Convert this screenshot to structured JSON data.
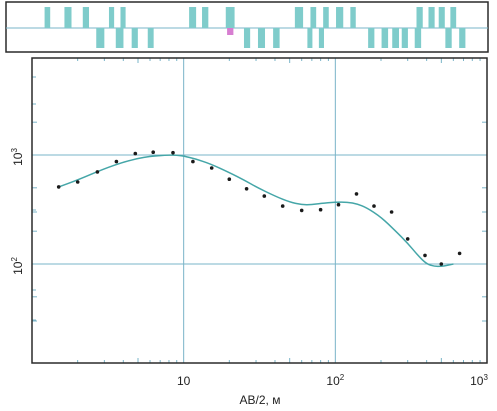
{
  "chart_data": [
    {
      "type": "bar",
      "panel": "top-strip",
      "x_scale": "log",
      "xlim": [
        1,
        1000
      ],
      "colors": {
        "bar": "#7fcccb",
        "highlight": "#d77ed1",
        "frame": "#2a2a2a"
      },
      "up_bars": [
        {
          "x0": 1.55,
          "x1": 1.68
        },
        {
          "x0": 2.06,
          "x1": 2.28
        },
        {
          "x0": 2.68,
          "x1": 2.93
        },
        {
          "x0": 3.9,
          "x1": 4.2
        },
        {
          "x0": 4.6,
          "x1": 4.95
        },
        {
          "x0": 12.3,
          "x1": 13.6
        },
        {
          "x0": 14.8,
          "x1": 16.2
        },
        {
          "x0": 20.8,
          "x1": 23.6,
          "highlight": true
        },
        {
          "x0": 56,
          "x1": 63
        },
        {
          "x0": 70,
          "x1": 76
        },
        {
          "x0": 84,
          "x1": 91
        },
        {
          "x0": 101,
          "x1": 112
        },
        {
          "x0": 124,
          "x1": 134
        },
        {
          "x0": 320,
          "x1": 350
        },
        {
          "x0": 380,
          "x1": 415
        },
        {
          "x0": 440,
          "x1": 480
        },
        {
          "x0": 520,
          "x1": 565
        }
      ],
      "down_bars": [
        {
          "x0": 3.25,
          "x1": 3.65
        },
        {
          "x0": 4.3,
          "x1": 4.8
        },
        {
          "x0": 5.4,
          "x1": 5.9
        },
        {
          "x0": 6.8,
          "x1": 7.4
        },
        {
          "x0": 21.2,
          "x1": 23.2,
          "highlight": true
        },
        {
          "x0": 27,
          "x1": 29.5
        },
        {
          "x0": 33,
          "x1": 36.5
        },
        {
          "x0": 41,
          "x1": 45
        },
        {
          "x0": 67,
          "x1": 72
        },
        {
          "x0": 79,
          "x1": 85
        },
        {
          "x0": 160,
          "x1": 175
        },
        {
          "x0": 194,
          "x1": 213
        },
        {
          "x0": 226,
          "x1": 249
        },
        {
          "x0": 259,
          "x1": 283
        },
        {
          "x0": 312,
          "x1": 342
        },
        {
          "x0": 484,
          "x1": 530
        },
        {
          "x0": 590,
          "x1": 645
        }
      ]
    },
    {
      "type": "scatter",
      "panel": "sounding-curve",
      "x_scale": "log",
      "y_scale": "log",
      "xlim": [
        1,
        1000
      ],
      "ylim": [
        15,
        2000
      ],
      "grid": true,
      "xlabel": "AB/2, м",
      "ylabel": "",
      "colors": {
        "curve": "#45a6a8",
        "grid": "#7ab4c8",
        "point": "#1a1a1a",
        "frame": "#2a2a2a"
      },
      "x_ticks": [
        {
          "value": 10,
          "label": "10",
          "sup": ""
        },
        {
          "value": 100,
          "label": "10",
          "sup": "2"
        },
        {
          "value": 1000,
          "label": "10",
          "sup": "3"
        }
      ],
      "y_ticks": [
        {
          "value": 100,
          "label": "10",
          "sup": "2"
        },
        {
          "value": 1000,
          "label": "10",
          "sup": "3"
        }
      ],
      "points": {
        "x": [
          1.5,
          2.0,
          2.7,
          3.6,
          4.8,
          6.3,
          8.5,
          11.5,
          15.3,
          20,
          26,
          34,
          45,
          60,
          80,
          105,
          138,
          180,
          235,
          300,
          390,
          500,
          660
        ],
        "y": [
          510,
          565,
          700,
          870,
          1030,
          1060,
          1050,
          870,
          760,
          600,
          490,
          420,
          340,
          310,
          315,
          350,
          440,
          340,
          300,
          170,
          120,
          100,
          125
        ]
      },
      "fit_curve": {
        "x": [
          1.5,
          2,
          3,
          4,
          5,
          6,
          7,
          8,
          9,
          10,
          12,
          15,
          20,
          25,
          30,
          40,
          50,
          60,
          70,
          80,
          100,
          120,
          140,
          160,
          200,
          250,
          300,
          350,
          400,
          450,
          500,
          550,
          600
        ],
        "y": [
          510,
          590,
          750,
          860,
          930,
          970,
          990,
          1000,
          995,
          980,
          920,
          830,
          690,
          590,
          510,
          420,
          370,
          350,
          350,
          360,
          370,
          370,
          355,
          330,
          270,
          200,
          155,
          120,
          100,
          95,
          95,
          97,
          100
        ]
      }
    }
  ]
}
